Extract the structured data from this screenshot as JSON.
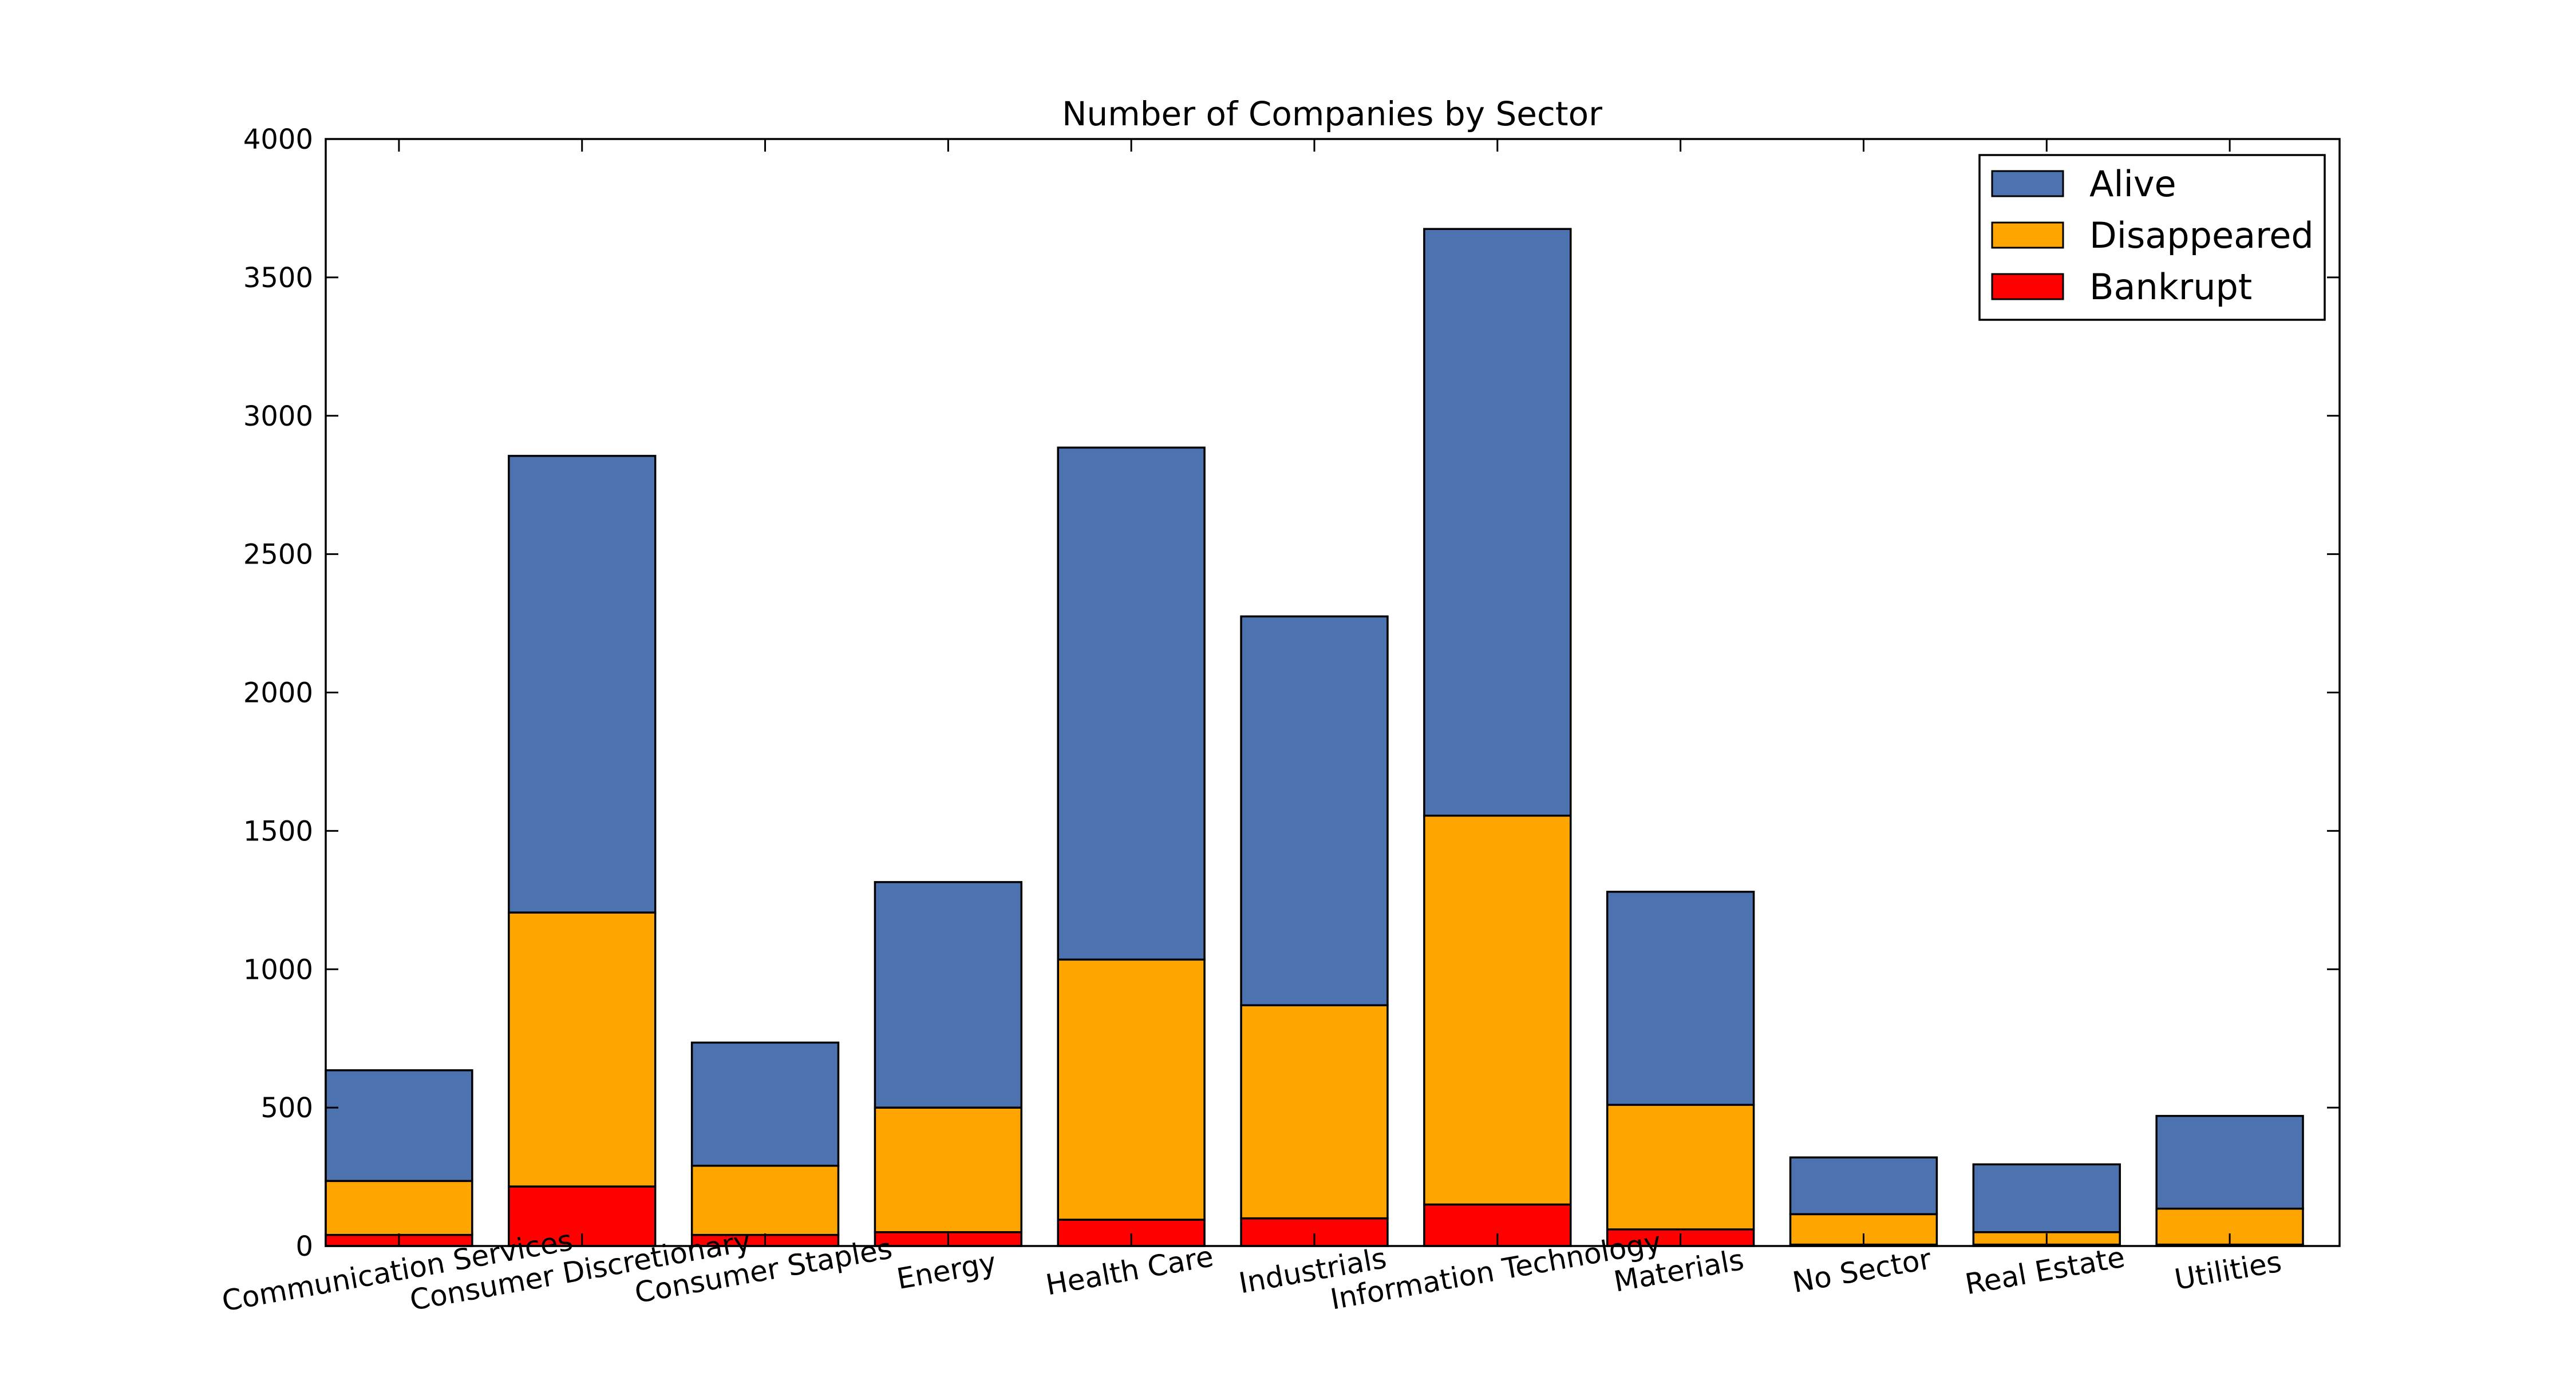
{
  "chart_data": {
    "type": "bar",
    "stacked": true,
    "title": "Number of Companies by Sector",
    "xlabel": "",
    "ylabel": "",
    "ylim": [
      0,
      4000
    ],
    "yticks": [
      0,
      500,
      1000,
      1500,
      2000,
      2500,
      3000,
      3500,
      4000
    ],
    "grid": false,
    "legend_position": "top-right",
    "categories": [
      "Communication Services",
      "Consumer Discretionary",
      "Consumer Staples",
      "Energy",
      "Health Care",
      "Industrials",
      "Information Technology",
      "Materials",
      "No Sector",
      "Real Estate",
      "Utilities"
    ],
    "series": [
      {
        "name": "Bankrupt",
        "color": "#ff0000",
        "values": [
          40,
          215,
          40,
          50,
          95,
          100,
          150,
          60,
          5,
          5,
          5
        ]
      },
      {
        "name": "Disappeared",
        "color": "#ffa500",
        "values": [
          195,
          990,
          250,
          450,
          940,
          770,
          1405,
          450,
          110,
          45,
          130
        ]
      },
      {
        "name": "Alive",
        "color": "#4c72b0",
        "values": [
          400,
          1650,
          445,
          815,
          1850,
          1405,
          2120,
          770,
          205,
          245,
          335
        ]
      }
    ],
    "legend_order": [
      "Alive",
      "Disappeared",
      "Bankrupt"
    ]
  }
}
